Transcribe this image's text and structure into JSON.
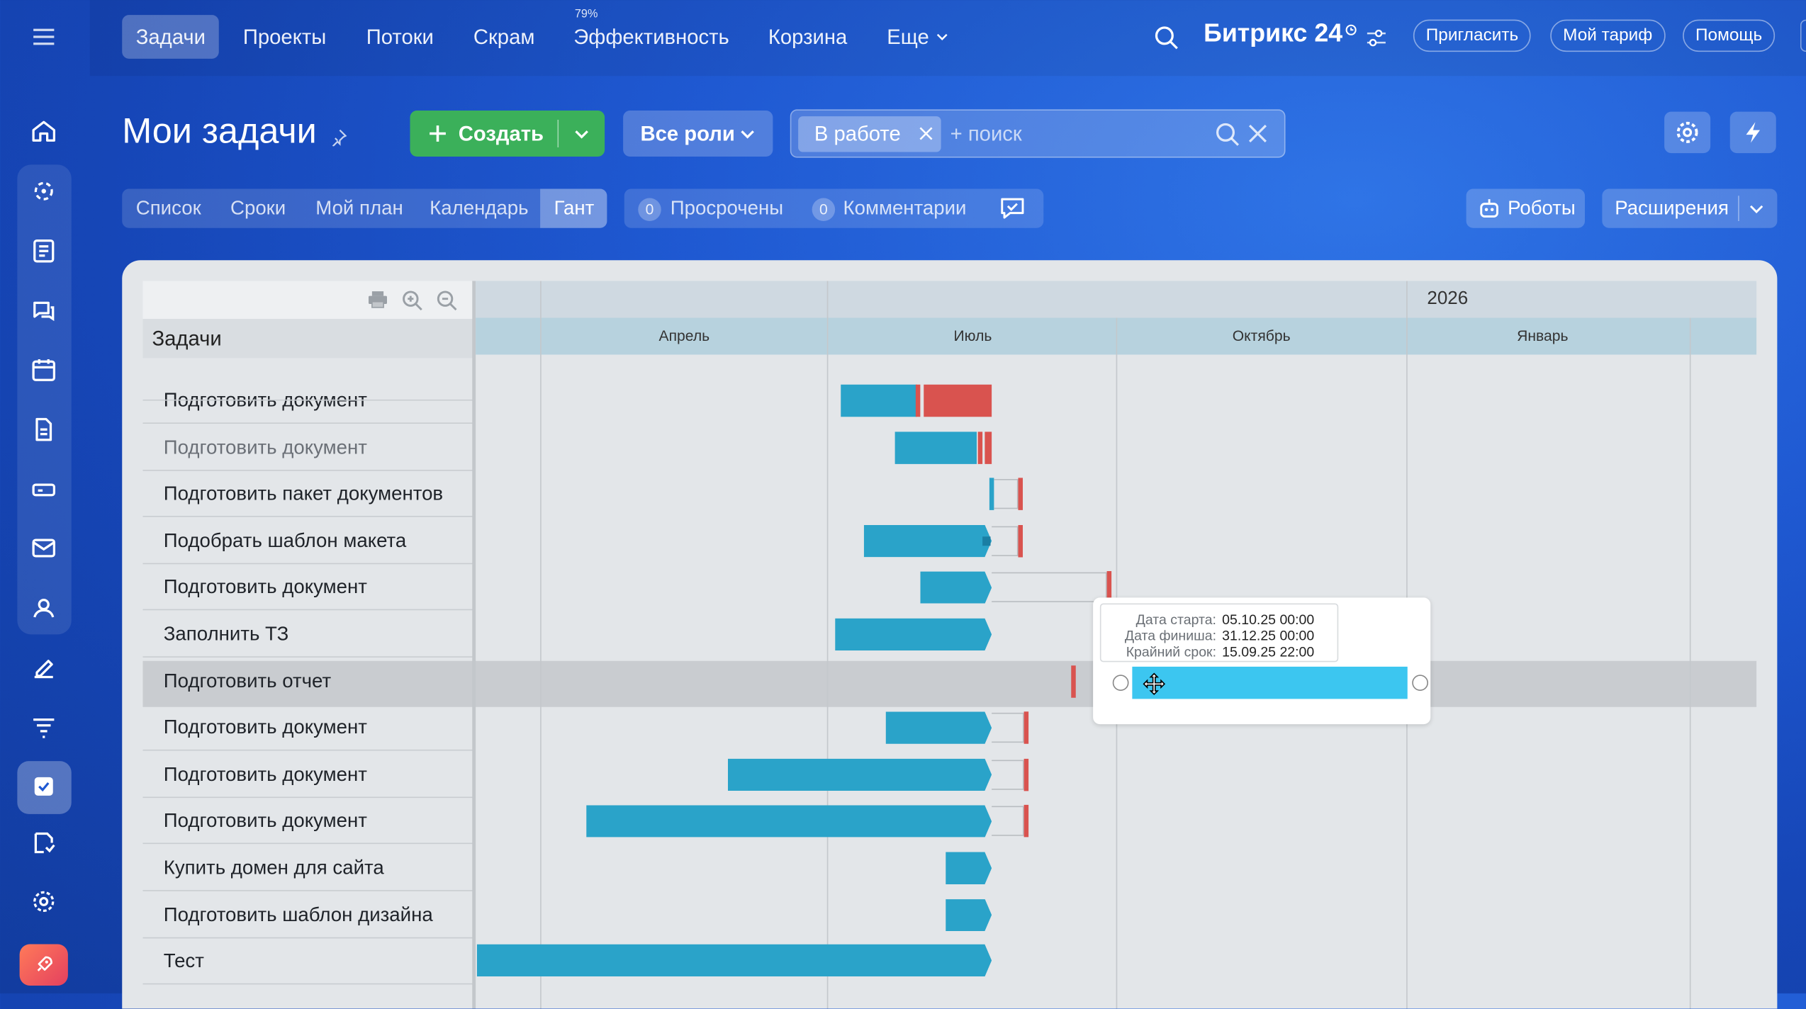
{
  "nav": {
    "items": [
      "Задачи",
      "Проекты",
      "Потоки",
      "Скрам",
      "Эффективность",
      "Корзина",
      "Еще"
    ],
    "efficiency_badge": "79%",
    "brand": "Битрикс 24",
    "invite": "Пригласить",
    "tariff": "Мой тариф",
    "help": "Помощь"
  },
  "page": {
    "title": "Мои задачи",
    "create_label": "Создать",
    "roles_label": "Все роли",
    "filter_chip": "В работе",
    "search_placeholder": "+ поиск"
  },
  "tabs": [
    "Список",
    "Сроки",
    "Мой план",
    "Календарь",
    "Гант"
  ],
  "active_tab": "Гант",
  "counters": [
    {
      "count": "0",
      "label": "Просрочены"
    },
    {
      "count": "0",
      "label": "Комментарии"
    }
  ],
  "robots_label": "Роботы",
  "extensions_label": "Расширения",
  "gantt": {
    "tasks_header": "Задачи",
    "year": "2026",
    "months": [
      "Апрель",
      "Июль",
      "Октябрь",
      "Январь"
    ],
    "tasks": [
      {
        "title": "Подготовить документ",
        "dim": false
      },
      {
        "title": "Подготовить документ",
        "dim": true
      },
      {
        "title": "Подготовить пакет документов",
        "dim": false
      },
      {
        "title": "Подобрать шаблон макета",
        "dim": false
      },
      {
        "title": "Подготовить документ",
        "dim": false
      },
      {
        "title": "Заполнить ТЗ",
        "dim": false
      },
      {
        "title": "Подготовить отчет",
        "dim": false
      },
      {
        "title": "Подготовить документ",
        "dim": false
      },
      {
        "title": "Подготовить документ",
        "dim": false
      },
      {
        "title": "Подготовить документ",
        "dim": false
      },
      {
        "title": "Купить домен для сайта",
        "dim": false
      },
      {
        "title": "Подготовить шаблон дизайна",
        "dim": false
      },
      {
        "title": "Тест",
        "dim": false
      }
    ],
    "tooltip": {
      "start_key": "Дата старта:",
      "start_val": "05.10.25 00:00",
      "finish_key": "Дата финиша:",
      "finish_val": "31.12.25 00:00",
      "deadline_key": "Крайний срок:",
      "deadline_val": "15.09.25 22:00"
    }
  },
  "colors": {
    "bar": "#2aa3c9",
    "bar_selected": "#3cc6f0",
    "overdue": "#d9534f",
    "create_button": "#3bb05a"
  }
}
